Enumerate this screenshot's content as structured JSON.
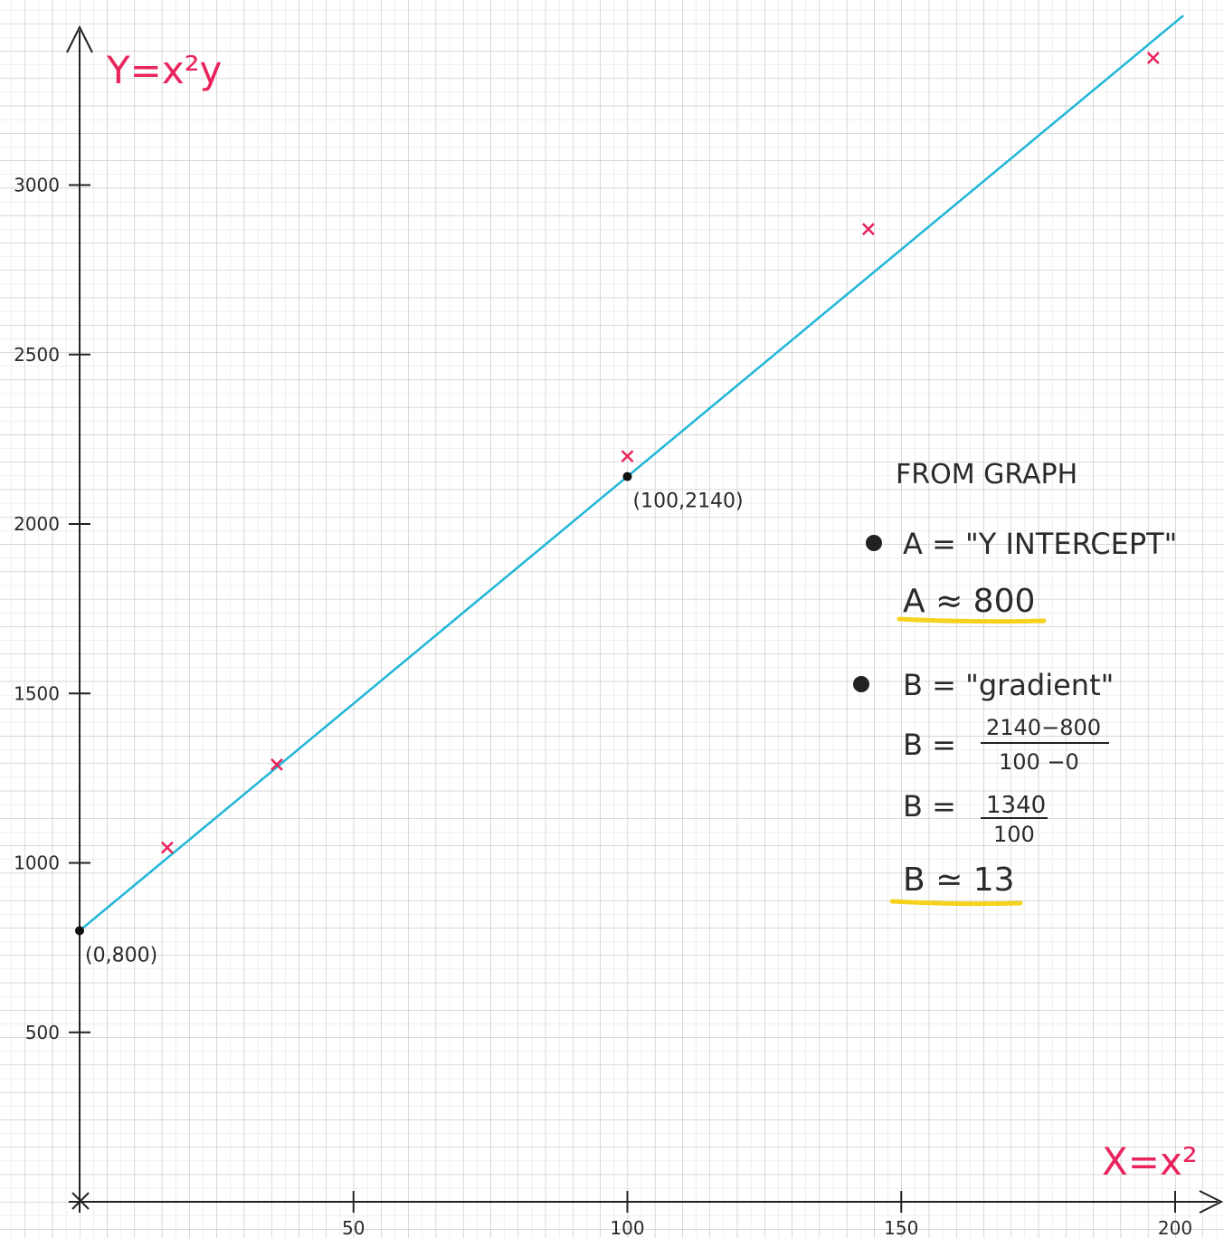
{
  "chart_data": {
    "type": "scatter",
    "title": "",
    "xlabel": "X=x²",
    "ylabel": "Y=x²y",
    "xlim": [
      0,
      210
    ],
    "ylim": [
      0,
      3500
    ],
    "grid": true,
    "x_ticks": [
      {
        "value": 50,
        "label": "50"
      },
      {
        "value": 100,
        "label": "100"
      },
      {
        "value": 150,
        "label": "150"
      },
      {
        "value": 200,
        "label": "200"
      }
    ],
    "y_ticks": [
      {
        "value": 500,
        "label": "500"
      },
      {
        "value": 1000,
        "label": "1000"
      },
      {
        "value": 1500,
        "label": "1500"
      },
      {
        "value": 2000,
        "label": "2000"
      },
      {
        "value": 2500,
        "label": "2500"
      },
      {
        "value": 3000,
        "label": "3000"
      }
    ],
    "points": [
      {
        "x": 16,
        "y": 1045
      },
      {
        "x": 36,
        "y": 1290
      },
      {
        "x": 100,
        "y": 2200
      },
      {
        "x": 144,
        "y": 2870
      },
      {
        "x": 196,
        "y": 3375
      }
    ],
    "fit_line": {
      "intercept": 800,
      "slope": 13.4,
      "x_start": 0,
      "x_end": 200,
      "color": "#1fb6d8"
    },
    "marked_points": [
      {
        "x": 0,
        "y": 800,
        "label": "(0,800)",
        "label_side": "below-right"
      },
      {
        "x": 100,
        "y": 2140,
        "label": "(100,2140)",
        "label_side": "below-right"
      }
    ],
    "colors": {
      "points": "#e8245c",
      "axis_labels": "#e8245c",
      "line": "#1fb6d8",
      "highlight": "#f5d21e",
      "ink": "#2a2a2a"
    }
  },
  "notes": {
    "heading": "FROM GRAPH",
    "a_def": "A = \"Y INTERCEPT\"",
    "a_val": "A ≈ 800",
    "b_def": "B = \"gradient\"",
    "b_frac_lhs": "B =",
    "b_frac_num": "2140−800",
    "b_frac_den": "100 −0",
    "b_frac2_lhs": "B =",
    "b_frac2_num": "1340",
    "b_frac2_den": "100",
    "b_val": "B ≃ 13"
  }
}
